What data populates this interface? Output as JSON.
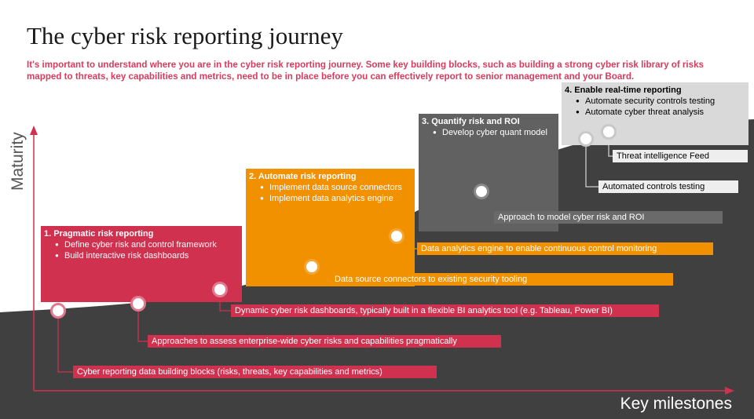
{
  "title": "The cyber risk reporting journey",
  "subtitle": "It's important to understand where you are in the cyber risk reporting journey. Some key building blocks, such as building a strong cyber risk library of risks mapped to threats, key capabilities and metrics, need to be in place before you can effectively report to senior management and your Board.",
  "axes": {
    "y_label": "Maturity",
    "x_label": "Key milestones"
  },
  "colors": {
    "red": "#d0314f",
    "orange": "#f29100",
    "dark_gray": "#616161",
    "light_gray": "#d9d9d9",
    "curve_fill": "#404040",
    "subtitle": "#d63c5e"
  },
  "stages": [
    {
      "heading": "1. Pragmatic risk reporting",
      "bullets": [
        "Define cyber risk and control framework",
        "Build interactive risk dashboards"
      ]
    },
    {
      "heading": "2. Automate risk reporting",
      "bullets": [
        "Implement data source connectors",
        "Implement data analytics engine"
      ]
    },
    {
      "heading": "3. Quantify risk and ROI",
      "bullets": [
        "Develop cyber quant model"
      ]
    },
    {
      "heading": "4. Enable real-time reporting",
      "bullets": [
        "Automate security controls testing",
        "Automate cyber threat analysis"
      ]
    }
  ],
  "milestones": [
    "Cyber reporting data building blocks (risks, threats, key capabilities and metrics)",
    "Approaches to assess enterprise-wide cyber risks and capabilities pragmatically",
    "Dynamic cyber risk dashboards, typically built in a flexible BI analytics tool (e.g. Tableau, Power BI)",
    "Data source connectors to existing security tooling",
    "Data analytics engine to enable continuous control monitoring",
    "Approach to model cyber risk and ROI",
    "Automated controls testing",
    "Threat intelligence Feed"
  ]
}
